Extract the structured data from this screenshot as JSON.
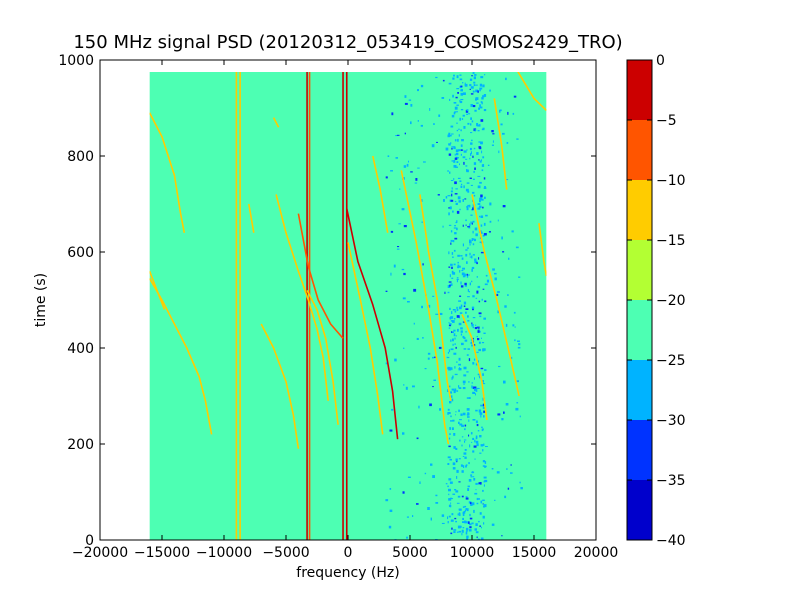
{
  "chart_data": {
    "type": "heatmap",
    "title": "150 MHz signal PSD (20120312_053419_COSMOS2429_TRO)",
    "xlabel": "frequency (Hz)",
    "ylabel": "time (s)",
    "xlim": [
      -20000,
      20000
    ],
    "ylim": [
      0,
      1000
    ],
    "x_ticks": [
      -20000,
      -15000,
      -10000,
      -5000,
      0,
      5000,
      10000,
      15000,
      20000
    ],
    "x_tick_labels": [
      "−20000",
      "−15000",
      "−10000",
      "−5000",
      "0",
      "5000",
      "10000",
      "15000",
      "20000"
    ],
    "y_ticks": [
      0,
      200,
      400,
      600,
      800,
      1000
    ],
    "y_tick_labels": [
      "0",
      "200",
      "400",
      "600",
      "800",
      "1000"
    ],
    "data_extent": {
      "x": [
        -16000,
        16000
      ],
      "y": [
        0,
        975
      ]
    },
    "background_level": -22.5,
    "noise_region_x": [
      8000,
      11000
    ],
    "colorbar": {
      "levels": [
        -40,
        -35,
        -30,
        -25,
        -20,
        -15,
        -10,
        -5,
        0
      ],
      "tick_labels": [
        "−40",
        "−35",
        "−30",
        "−25",
        "−20",
        "−15",
        "−10",
        "−5",
        "0"
      ],
      "colors": [
        "#0000cc",
        "#0033ff",
        "#00b3ff",
        "#4dffb3",
        "#b3ff33",
        "#ffcc00",
        "#ff5500",
        "#cc0000"
      ]
    },
    "vertical_lines": [
      {
        "x": -9000,
        "level": -12
      },
      {
        "x": -8700,
        "level": -14
      },
      {
        "x": -3300,
        "level": -2
      },
      {
        "x": -3100,
        "level": -10
      },
      {
        "x": -400,
        "level": -2
      },
      {
        "x": -100,
        "level": -2
      }
    ],
    "traces": [
      {
        "level": -12,
        "points": [
          [
            -16000,
            890
          ],
          [
            -15000,
            840
          ],
          [
            -14000,
            760
          ],
          [
            -13500,
            680
          ],
          [
            -13200,
            640
          ]
        ]
      },
      {
        "level": -12,
        "points": [
          [
            -16000,
            545
          ],
          [
            -15000,
            500
          ],
          [
            -14000,
            450
          ],
          [
            -13000,
            400
          ],
          [
            -12000,
            340
          ],
          [
            -11500,
            290
          ],
          [
            -11000,
            220
          ]
        ]
      },
      {
        "level": -12,
        "points": [
          [
            -7000,
            450
          ],
          [
            -6000,
            400
          ],
          [
            -5000,
            330
          ],
          [
            -4400,
            260
          ],
          [
            -4000,
            190
          ]
        ]
      },
      {
        "level": -12,
        "points": [
          [
            -5800,
            720
          ],
          [
            -5000,
            640
          ],
          [
            -4000,
            560
          ],
          [
            -3200,
            500
          ],
          [
            -2500,
            440
          ],
          [
            -2000,
            380
          ],
          [
            -1600,
            290
          ]
        ]
      },
      {
        "level": -12,
        "points": [
          [
            -3300,
            520
          ],
          [
            -2500,
            480
          ],
          [
            -1800,
            420
          ],
          [
            -1200,
            330
          ],
          [
            -800,
            240
          ]
        ]
      },
      {
        "level": -10,
        "points": [
          [
            -4000,
            680
          ],
          [
            -3200,
            570
          ],
          [
            -2400,
            500
          ],
          [
            -1400,
            450
          ],
          [
            -400,
            420
          ]
        ]
      },
      {
        "level": -2,
        "points": [
          [
            -100,
            690
          ],
          [
            800,
            580
          ],
          [
            2000,
            490
          ],
          [
            3000,
            400
          ],
          [
            3600,
            310
          ],
          [
            4000,
            210
          ]
        ]
      },
      {
        "level": -12,
        "points": [
          [
            0,
            620
          ],
          [
            500,
            560
          ],
          [
            1000,
            500
          ],
          [
            1800,
            400
          ],
          [
            2400,
            300
          ],
          [
            2800,
            220
          ]
        ]
      },
      {
        "level": -12,
        "points": [
          [
            2000,
            800
          ],
          [
            2600,
            730
          ],
          [
            3200,
            640
          ]
        ]
      },
      {
        "level": -12,
        "points": [
          [
            5800,
            720
          ],
          [
            6500,
            600
          ],
          [
            7200,
            500
          ],
          [
            7600,
            420
          ],
          [
            8000,
            330
          ],
          [
            8300,
            290
          ]
        ]
      },
      {
        "level": -12,
        "points": [
          [
            4300,
            770
          ],
          [
            5500,
            620
          ],
          [
            6500,
            480
          ],
          [
            7200,
            370
          ],
          [
            7800,
            240
          ],
          [
            8100,
            200
          ]
        ]
      },
      {
        "level": -12,
        "points": [
          [
            9200,
            470
          ],
          [
            10000,
            420
          ],
          [
            10800,
            330
          ],
          [
            11200,
            250
          ]
        ]
      },
      {
        "level": -15,
        "points": [
          [
            10000,
            720
          ],
          [
            11000,
            600
          ],
          [
            12000,
            500
          ],
          [
            13000,
            390
          ],
          [
            13800,
            300
          ]
        ]
      },
      {
        "level": -12,
        "points": [
          [
            11800,
            920
          ],
          [
            12400,
            820
          ],
          [
            12800,
            730
          ]
        ]
      },
      {
        "level": -12,
        "points": [
          [
            13600,
            980
          ],
          [
            15000,
            920
          ],
          [
            16000,
            895
          ]
        ]
      },
      {
        "level": -12,
        "points": [
          [
            15400,
            660
          ],
          [
            15800,
            580
          ],
          [
            16000,
            550
          ]
        ]
      },
      {
        "level": -14,
        "points": [
          [
            -8000,
            700
          ],
          [
            -7600,
            640
          ]
        ]
      },
      {
        "level": -14,
        "points": [
          [
            -6000,
            880
          ],
          [
            -5600,
            860
          ]
        ]
      },
      {
        "level": -14,
        "points": [
          [
            -16000,
            560
          ],
          [
            -15400,
            520
          ],
          [
            -14800,
            480
          ]
        ]
      }
    ]
  }
}
